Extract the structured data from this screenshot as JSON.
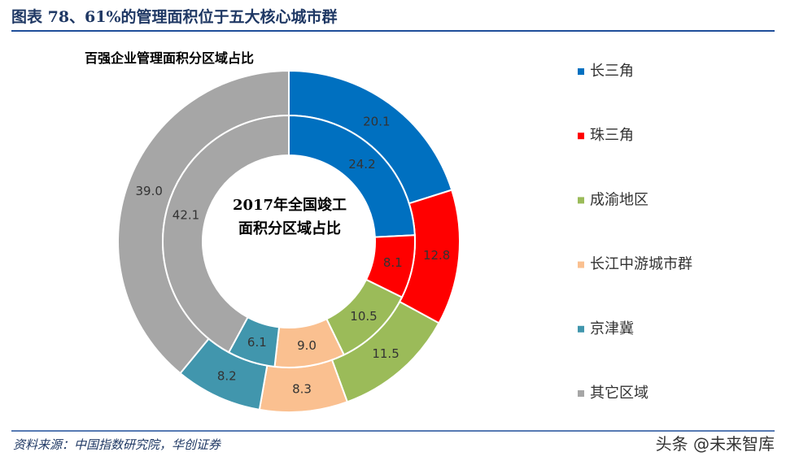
{
  "header": {
    "title": "图表 78、61%的管理面积位于五大核心城市群"
  },
  "chart_data": {
    "type": "donut",
    "categories": [
      "长三角",
      "珠三角",
      "成渝地区",
      "长江中游城市群",
      "京津冀",
      "其它区域"
    ],
    "colors": [
      "#0070c0",
      "#ff0000",
      "#9bbb59",
      "#fac090",
      "#4196ad",
      "#a6a6a6"
    ],
    "series": [
      {
        "name": "百强企业管理面积分区域占比",
        "values": [
          20.1,
          12.8,
          11.5,
          8.3,
          8.2,
          39.0
        ],
        "value_labels": [
          "20.1",
          "12.8",
          "11.5",
          "8.3",
          "8.2",
          "39.0"
        ]
      },
      {
        "name": "2017年全国竣工面积分区域占比",
        "values": [
          24.2,
          8.1,
          10.5,
          9.0,
          6.1,
          42.1
        ],
        "value_labels": [
          "24.2",
          "8.1",
          "10.5",
          "9.0",
          "6.1",
          "42.1"
        ]
      }
    ]
  },
  "footer": {
    "source": "资料来源：中国指数研究院，华创证券",
    "watermark": "头条 @未来智库"
  }
}
